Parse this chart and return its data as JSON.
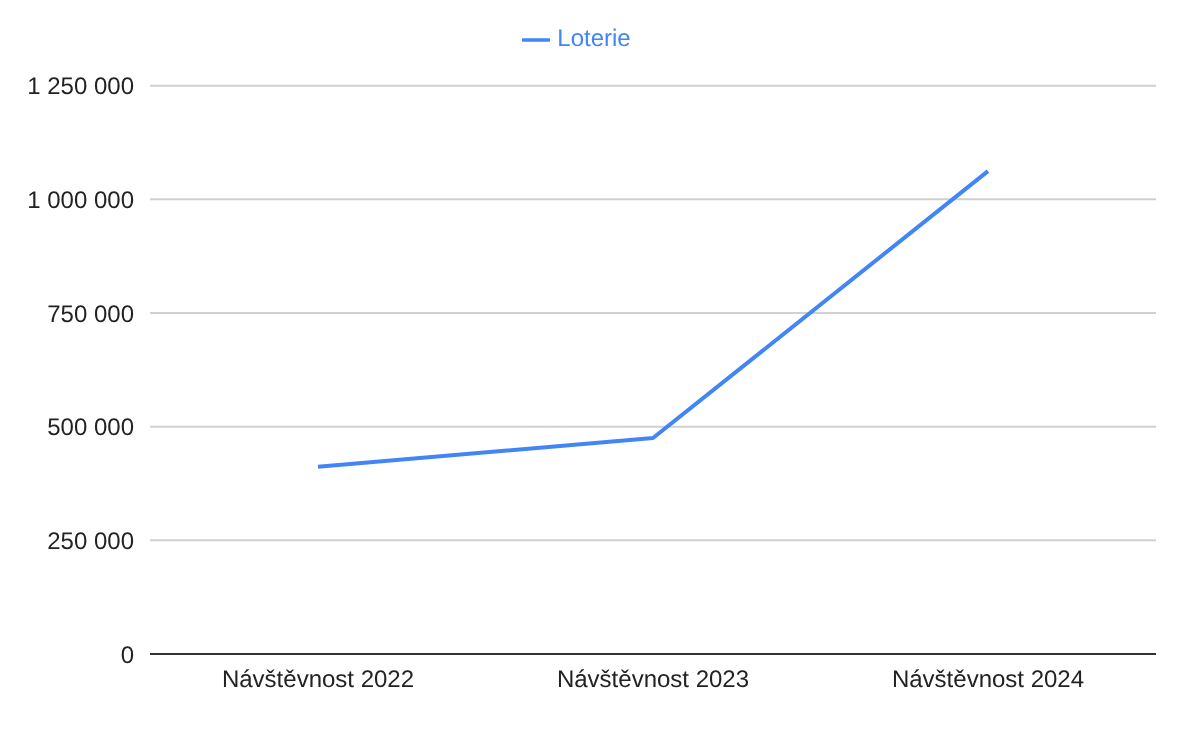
{
  "chart_data": {
    "type": "line",
    "categories": [
      "Návštěvnost 2022",
      "Návštěvnost 2023",
      "Návštěvnost 2024"
    ],
    "series": [
      {
        "name": "Loterie",
        "color": "#4285f4",
        "values": [
          412000,
          475000,
          1062000
        ]
      }
    ],
    "ylim": [
      0,
      1250000
    ],
    "yticks": [
      0,
      {
        "value": 250000,
        "label": "250 000"
      },
      {
        "value": 500000,
        "label": "500 000"
      },
      {
        "value": 750000,
        "label": "750 000"
      },
      {
        "value": 1000000,
        "label": "1 000 000"
      },
      {
        "value": 1250000,
        "label": "1 250 000"
      }
    ],
    "grid": "y",
    "legend": "top",
    "marker": "none"
  }
}
